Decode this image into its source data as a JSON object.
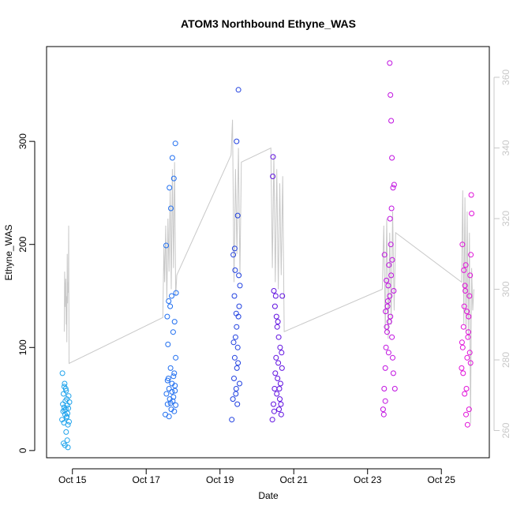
{
  "chart_data": {
    "type": "scatter",
    "title": "ATOM3 Northbound Ethyne_WAS",
    "xlabel": "Date",
    "ylabel": "Ethyne_WAS",
    "x_ticks": [
      "Oct 15",
      "Oct 17",
      "Oct 19",
      "Oct 21",
      "Oct 23",
      "Oct 25"
    ],
    "x_tick_days": [
      15,
      17,
      19,
      21,
      23,
      25
    ],
    "xlim": [
      14.3,
      26.3
    ],
    "ylim": [
      -7,
      392
    ],
    "y_ticks": [
      0,
      100,
      200,
      300
    ],
    "y2_ticks": [
      260,
      280,
      300,
      320,
      340,
      360
    ],
    "y2lim": [
      252.3,
      368.7
    ],
    "grid": false,
    "right_axis_color": "#c8c8c8",
    "line_color": "#c8c8c8",
    "series": [
      {
        "color": "#1fa3ec",
        "x": [
          14.72,
          14.74,
          14.75,
          14.76,
          14.77,
          14.78,
          14.79,
          14.8,
          14.81,
          14.82,
          14.83,
          14.84,
          14.85,
          14.86,
          14.87,
          14.88,
          14.89,
          14.9,
          14.91,
          14.92,
          14.73,
          14.78,
          14.83,
          14.86,
          14.8,
          14.76,
          14.88,
          14.82,
          14.85,
          14.79
        ],
        "y": [
          30,
          45,
          38,
          55,
          27,
          42,
          65,
          35,
          48,
          40,
          58,
          32,
          50,
          44,
          36,
          25,
          41,
          53,
          28,
          47,
          75,
          62,
          18,
          10,
          5,
          7,
          3,
          60,
          33,
          39
        ]
      },
      {
        "color": "#1f6ef0",
        "x": [
          17.52,
          17.55,
          17.58,
          17.6,
          17.62,
          17.64,
          17.66,
          17.68,
          17.7,
          17.72,
          17.74,
          17.76,
          17.78,
          17.8,
          17.57,
          17.61,
          17.65,
          17.69,
          17.73,
          17.77,
          17.79,
          17.71,
          17.75,
          17.63,
          17.67,
          17.54,
          17.59,
          17.81,
          17.8,
          17.78,
          17.76,
          17.74,
          17.7,
          17.66,
          17.62,
          17.58
        ],
        "y": [
          35,
          55,
          45,
          70,
          60,
          50,
          80,
          40,
          65,
          48,
          52,
          75,
          58,
          44,
          130,
          145,
          140,
          150,
          115,
          125,
          298,
          284,
          264,
          255,
          235,
          199,
          103,
          153,
          90,
          63,
          38,
          72,
          57,
          46,
          33,
          68
        ]
      },
      {
        "color": "#2040e0",
        "x": [
          19.32,
          19.35,
          19.38,
          19.4,
          19.42,
          19.44,
          19.46,
          19.48,
          19.5,
          19.52,
          19.54,
          19.36,
          19.41,
          19.45,
          19.49,
          19.53,
          19.39,
          19.43,
          19.47,
          19.51,
          19.37,
          19.5,
          19.45,
          19.48,
          19.4,
          19.44
        ],
        "y": [
          30,
          50,
          70,
          90,
          110,
          60,
          80,
          100,
          130,
          140,
          160,
          190,
          175,
          120,
          85,
          65,
          150,
          55,
          45,
          170,
          105,
          350,
          300,
          228,
          196,
          133
        ]
      },
      {
        "color": "#6010e0",
        "x": [
          20.42,
          20.45,
          20.48,
          20.5,
          20.52,
          20.54,
          20.56,
          20.58,
          20.6,
          20.62,
          20.64,
          20.66,
          20.68,
          20.46,
          20.51,
          20.55,
          20.59,
          20.63,
          20.67,
          20.49,
          20.53,
          20.57,
          20.61,
          20.65,
          20.47,
          20.44,
          20.43,
          20.69
        ],
        "y": [
          30,
          45,
          60,
          75,
          90,
          55,
          70,
          85,
          40,
          50,
          65,
          35,
          80,
          155,
          150,
          120,
          110,
          100,
          95,
          140,
          130,
          125,
          60,
          45,
          38,
          285,
          266,
          150
        ]
      },
      {
        "color": "#c010e0",
        "x": [
          23.42,
          23.45,
          23.48,
          23.5,
          23.52,
          23.54,
          23.56,
          23.58,
          23.6,
          23.62,
          23.64,
          23.66,
          23.68,
          23.7,
          23.46,
          23.51,
          23.55,
          23.59,
          23.63,
          23.67,
          23.71,
          23.49,
          23.53,
          23.57,
          23.61,
          23.65,
          23.69,
          23.72,
          23.74,
          23.6,
          23.62,
          23.64,
          23.66,
          23.48,
          23.44
        ],
        "y": [
          40,
          60,
          80,
          100,
          120,
          140,
          160,
          180,
          150,
          130,
          170,
          110,
          90,
          75,
          190,
          165,
          145,
          125,
          200,
          185,
          155,
          135,
          115,
          95,
          225,
          235,
          255,
          258,
          60,
          376,
          345,
          320,
          284,
          48,
          35
        ]
      },
      {
        "color": "#e010d8",
        "x": [
          25.55,
          25.58,
          25.6,
          25.62,
          25.64,
          25.66,
          25.68,
          25.7,
          25.72,
          25.74,
          25.76,
          25.78,
          25.8,
          25.57,
          25.61,
          25.65,
          25.69,
          25.73,
          25.77,
          25.59,
          25.63,
          25.67,
          25.71,
          25.75,
          25.79,
          25.56,
          25.81,
          25.82
        ],
        "y": [
          80,
          100,
          120,
          140,
          160,
          180,
          60,
          90,
          110,
          130,
          150,
          170,
          190,
          200,
          175,
          155,
          135,
          115,
          95,
          75,
          55,
          35,
          25,
          40,
          85,
          105,
          248,
          230
        ]
      }
    ],
    "secondary_line": {
      "x": [
        14.78,
        14.79,
        14.8,
        14.81,
        14.82,
        14.83,
        14.84,
        14.85,
        14.86,
        14.87,
        14.88,
        14.89,
        14.9,
        14.91,
        17.45,
        17.48,
        17.5,
        17.53,
        17.56,
        17.59,
        17.62,
        17.65,
        17.68,
        17.71,
        17.74,
        17.77,
        17.8,
        17.83,
        19.3,
        19.34,
        19.38,
        19.42,
        19.46,
        19.5,
        19.54,
        19.58,
        20.38,
        20.42,
        20.46,
        20.5,
        20.54,
        20.58,
        20.62,
        20.66,
        20.7,
        20.74,
        23.4,
        23.44,
        23.48,
        23.52,
        23.56,
        23.6,
        23.64,
        23.68,
        23.72,
        23.76,
        25.55,
        25.58,
        25.61,
        25.64,
        25.67,
        25.7,
        25.73,
        25.76,
        25.79,
        25.82,
        25.85,
        25.88
      ],
      "y": [
        288,
        305,
        295,
        300,
        303,
        290,
        298,
        285,
        310,
        296,
        302,
        299,
        318,
        279,
        292,
        312,
        302,
        318,
        297,
        320,
        305,
        328,
        300,
        334,
        306,
        336,
        298,
        304,
        338,
        348,
        302,
        334,
        310,
        340,
        304,
        336,
        340,
        306,
        338,
        302,
        334,
        300,
        330,
        304,
        332,
        288,
        300,
        318,
        288,
        320,
        286,
        316,
        290,
        322,
        294,
        316,
        302,
        328,
        290,
        326,
        288,
        322,
        286,
        316,
        262,
        306,
        294,
        300
      ]
    }
  }
}
